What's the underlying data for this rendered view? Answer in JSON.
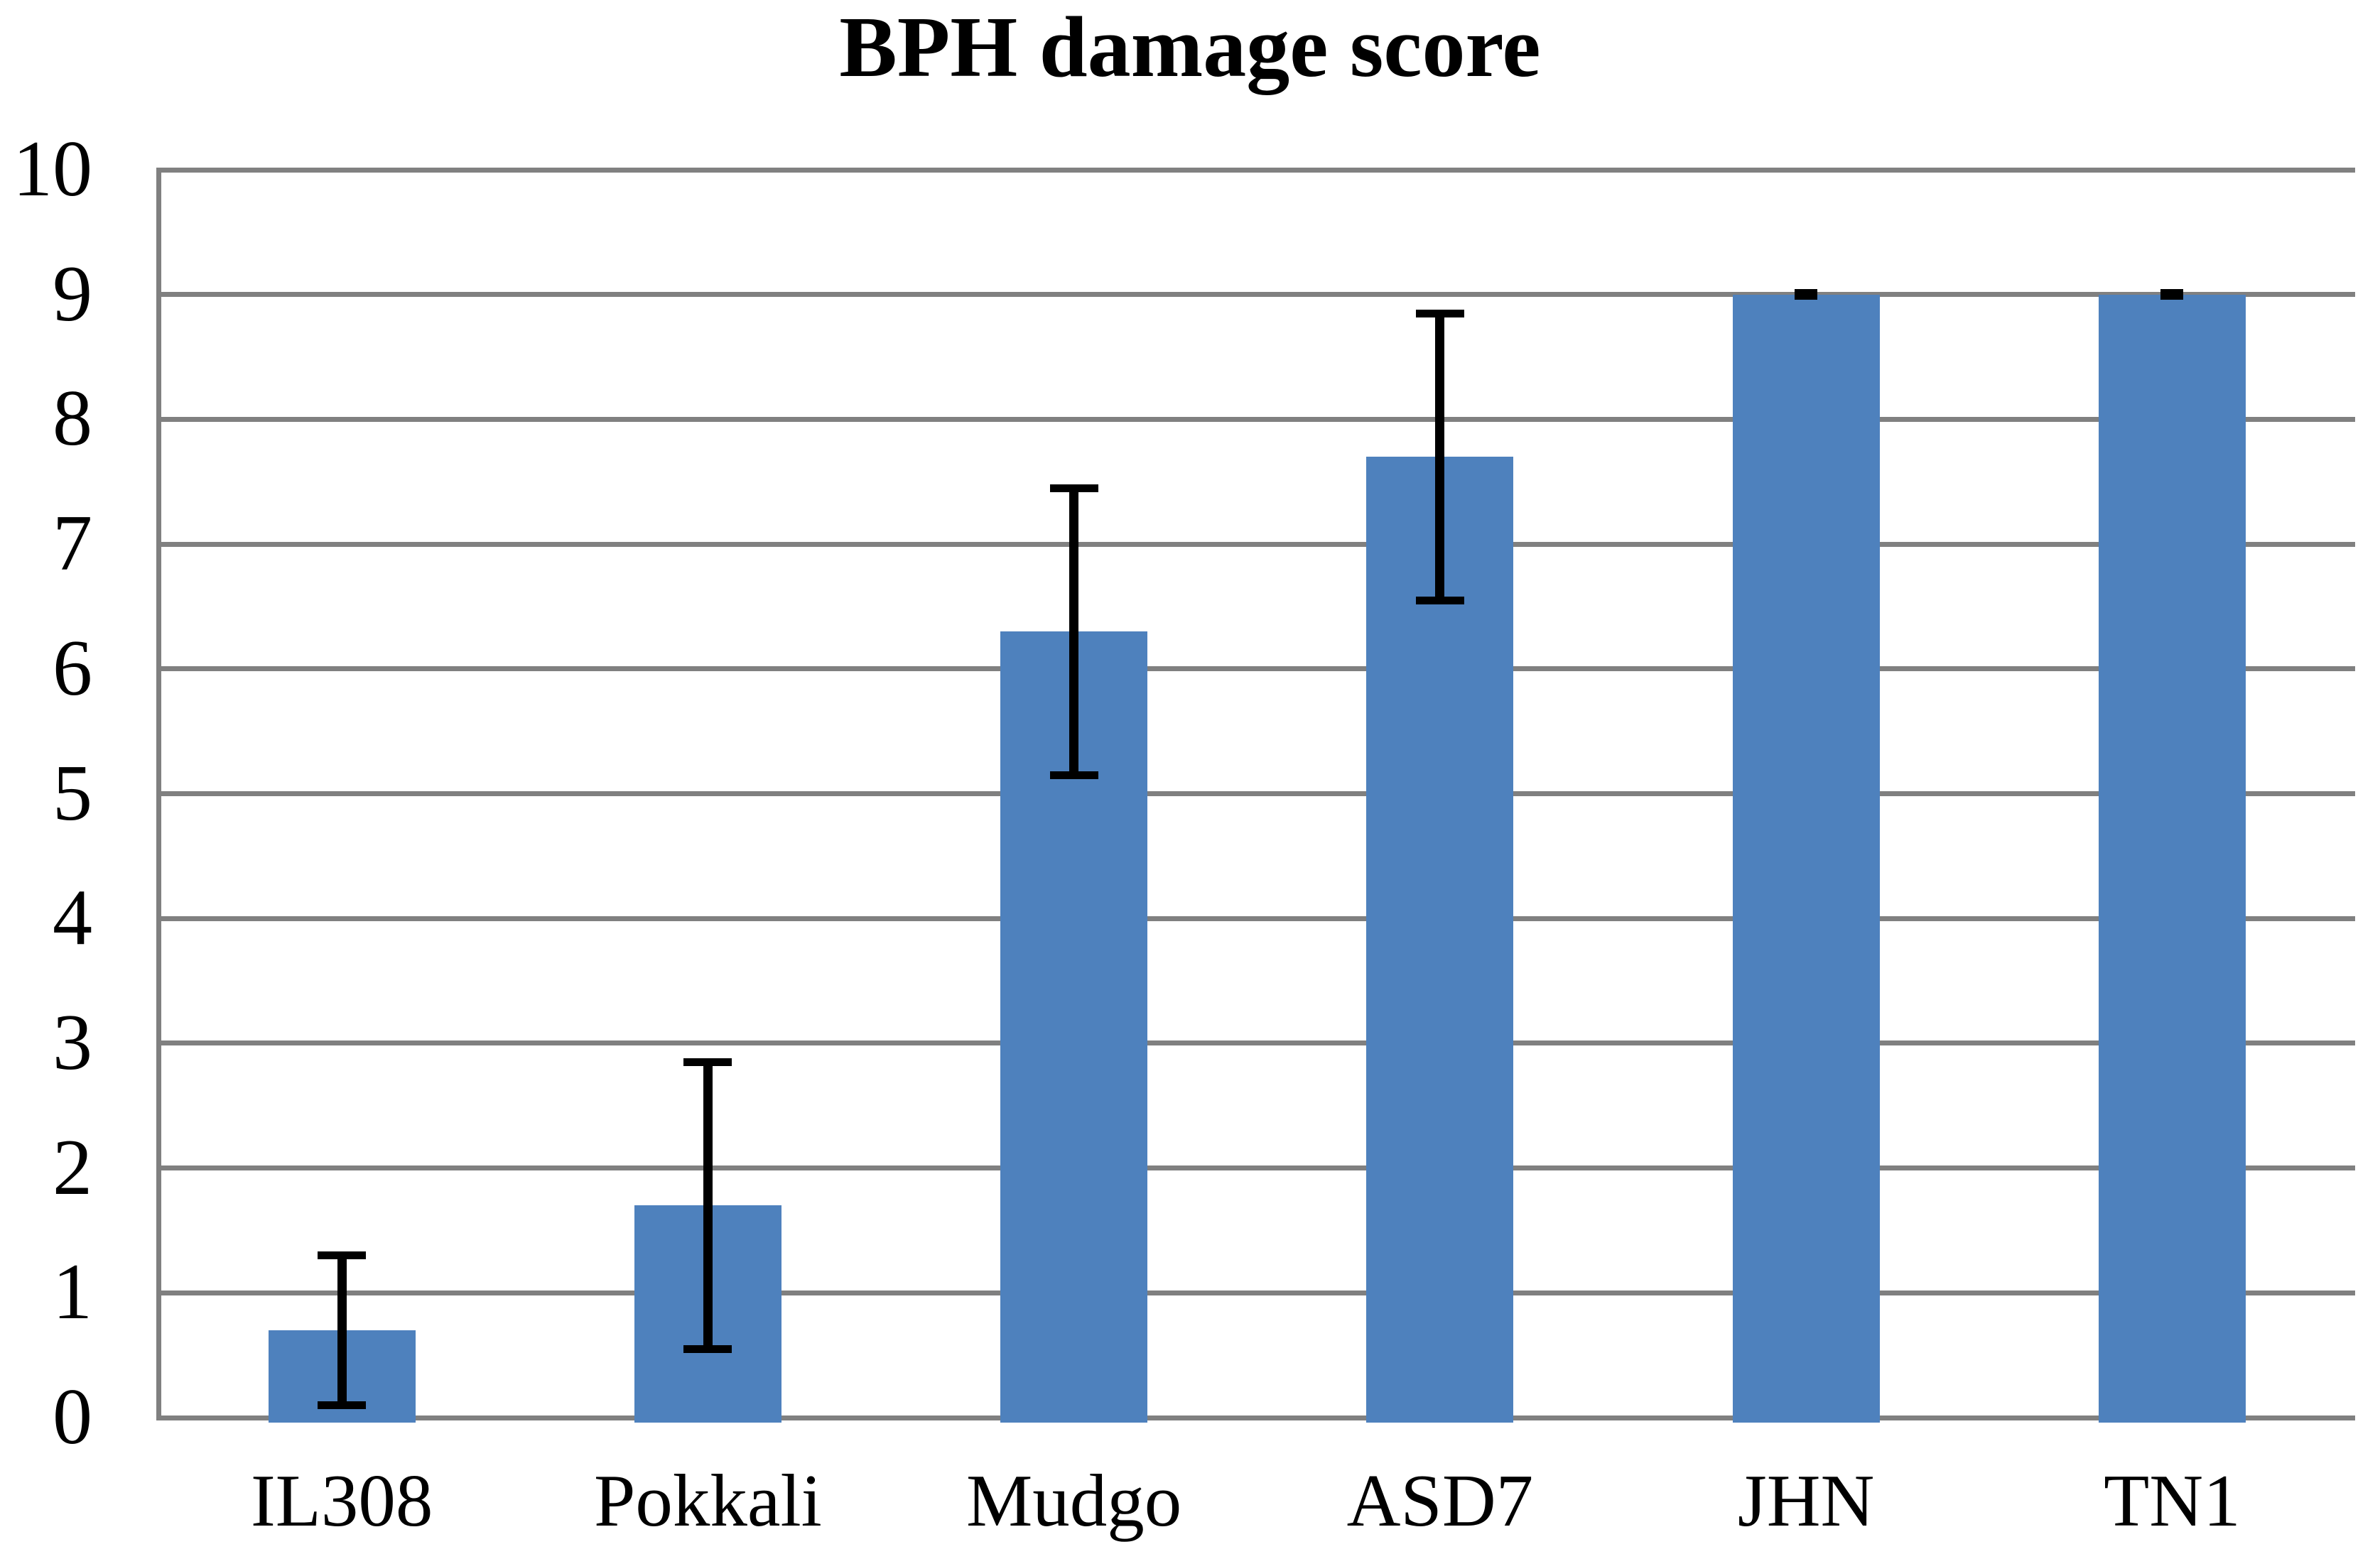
{
  "chart_data": {
    "type": "bar",
    "title": "BPH damage score",
    "categories": [
      "IL308",
      "Pokkali",
      "Mudgo",
      "ASD7",
      "JHN",
      "TN1"
    ],
    "series": [
      {
        "name": "BPH damage score",
        "values": [
          0.7,
          1.7,
          6.3,
          7.7,
          9.0,
          9.0
        ],
        "error_plus": [
          0.6,
          1.15,
          1.15,
          1.15,
          0.01,
          0.01
        ],
        "error_minus": [
          0.6,
          1.15,
          1.15,
          1.15,
          0.01,
          0.01
        ]
      }
    ],
    "xlabel": "",
    "ylabel": "",
    "ylim": [
      0,
      10
    ],
    "ytick_step": 1,
    "ytick_labels": [
      "0",
      "1",
      "2",
      "3",
      "4",
      "5",
      "6",
      "7",
      "8",
      "9",
      "10"
    ],
    "grid": true,
    "legend": false,
    "colors": {
      "bar": "#4E81BD",
      "gridline": "#808080",
      "axis": "#808080",
      "error_bar": "#000000",
      "text": "#000000",
      "background": "#FFFFFF"
    }
  }
}
